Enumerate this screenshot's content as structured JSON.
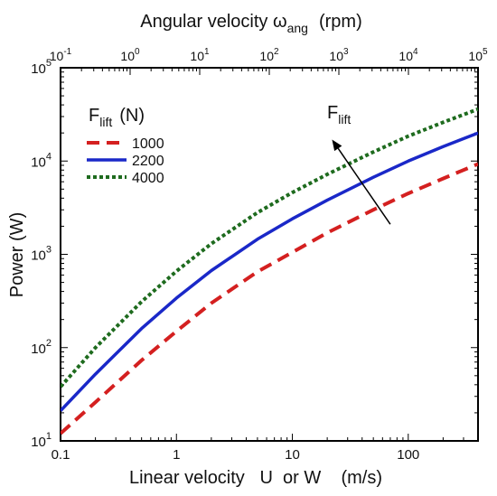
{
  "chart_data": {
    "type": "line",
    "title": "",
    "xlabel": "Linear velocity   U  or W    (m/s)",
    "ylabel": "Power (W)",
    "top_axis": {
      "label_main": "Angular velocity  ω",
      "label_sub": "ang",
      "label_unit": "(rpm)",
      "range": [
        0.1,
        100000
      ],
      "scale": "log",
      "ticks": [
        {
          "base": "10",
          "exp": "-1",
          "value": 0.1
        },
        {
          "base": "10",
          "exp": "0",
          "value": 1
        },
        {
          "base": "10",
          "exp": "1",
          "value": 10
        },
        {
          "base": "10",
          "exp": "2",
          "value": 100
        },
        {
          "base": "10",
          "exp": "3",
          "value": 1000
        },
        {
          "base": "10",
          "exp": "4",
          "value": 10000
        },
        {
          "base": "10",
          "exp": "5",
          "value": 100000
        }
      ]
    },
    "x_scale": "log",
    "y_scale": "log",
    "xlim": [
      0.1,
      400
    ],
    "ylim": [
      10,
      100000
    ],
    "x_ticks": [
      {
        "label": "0.1",
        "value": 0.1
      },
      {
        "label": "1",
        "value": 1
      },
      {
        "label": "10",
        "value": 10
      },
      {
        "label": "100",
        "value": 100
      }
    ],
    "y_ticks": [
      {
        "base": "10",
        "exp": "1",
        "value": 10
      },
      {
        "base": "10",
        "exp": "2",
        "value": 100
      },
      {
        "base": "10",
        "exp": "3",
        "value": 1000
      },
      {
        "base": "10",
        "exp": "4",
        "value": 10000
      },
      {
        "base": "10",
        "exp": "5",
        "value": 100000
      }
    ],
    "grid": false,
    "legend": {
      "position": "top-left",
      "title_main": "F",
      "title_sub": "lift",
      "title_unit": "(N)"
    },
    "series": [
      {
        "name": "1000",
        "color": "#d42020",
        "dash": "dashed",
        "x": [
          0.1,
          0.2,
          0.5,
          1,
          2,
          5,
          10,
          20,
          50,
          100,
          200,
          400
        ],
        "y": [
          12,
          26,
          73,
          150,
          300,
          650,
          1050,
          1700,
          3000,
          4500,
          6500,
          9300
        ]
      },
      {
        "name": "2200",
        "color": "#1a28c8",
        "dash": "solid",
        "x": [
          0.1,
          0.2,
          0.5,
          1,
          2,
          5,
          10,
          20,
          50,
          100,
          200,
          400
        ],
        "y": [
          21,
          52,
          160,
          340,
          670,
          1450,
          2400,
          3800,
          6700,
          10000,
          14300,
          20000
        ]
      },
      {
        "name": "4000",
        "color": "#1e6b1e",
        "dash": "dotted",
        "x": [
          0.1,
          0.2,
          0.5,
          1,
          2,
          5,
          10,
          20,
          50,
          100,
          200,
          400
        ],
        "y": [
          38,
          100,
          310,
          660,
          1300,
          2800,
          4600,
          7200,
          12500,
          18500,
          26000,
          36000
        ]
      }
    ],
    "annotations": [
      {
        "type": "arrow",
        "label_main": "F",
        "label_sub": "lift",
        "from": [
          70,
          2100
        ],
        "to": [
          22,
          17000
        ]
      }
    ]
  }
}
